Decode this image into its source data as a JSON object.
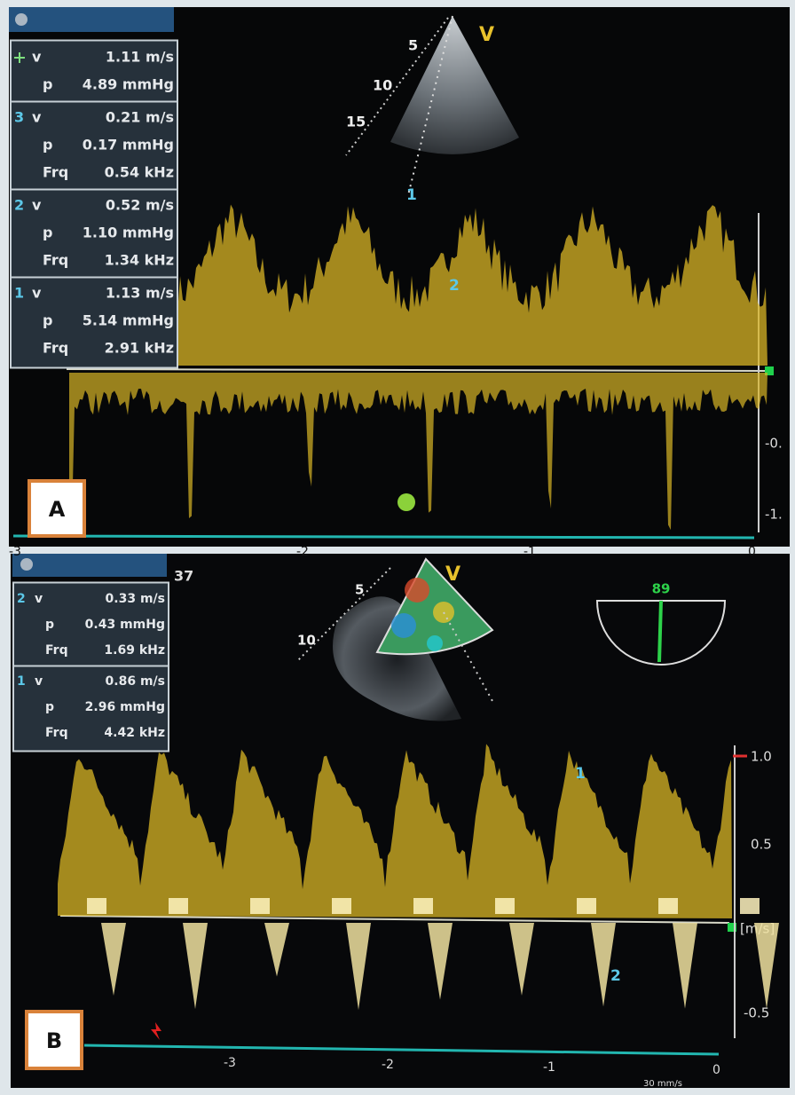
{
  "panel_a": {
    "label": "A",
    "probe": "V",
    "depth_marks": [
      "5",
      "10",
      "15"
    ],
    "cursors": [
      "1",
      "2"
    ],
    "measurements": [
      {
        "rows": [
          [
            "v",
            "1.11 m/s"
          ],
          [
            "p",
            "4.89 mmHg"
          ]
        ]
      },
      {
        "index": "3",
        "rows": [
          [
            "v",
            "0.21 m/s"
          ],
          [
            "p",
            "0.17 mmHg"
          ],
          [
            "Frq",
            "0.54 kHz"
          ]
        ]
      },
      {
        "index": "2",
        "rows": [
          [
            "v",
            "0.52 m/s"
          ],
          [
            "p",
            "1.10 mmHg"
          ],
          [
            "Frq",
            "1.34 kHz"
          ]
        ]
      },
      {
        "index": "1",
        "rows": [
          [
            "v",
            "1.13 m/s"
          ],
          [
            "p",
            "5.14 mmHg"
          ],
          [
            "Frq",
            "2.91 kHz"
          ]
        ]
      }
    ],
    "time_ticks": [
      "-3",
      "-2",
      "-1",
      "0"
    ],
    "scale_labels": [
      "-0.",
      "-1."
    ]
  },
  "panel_b": {
    "label": "B",
    "frame": "37",
    "probe": "V",
    "depth_marks": [
      "5",
      "10"
    ],
    "angle": "89",
    "cursors": [
      "1",
      "2"
    ],
    "measurements": [
      {
        "index": "2",
        "rows": [
          [
            "v",
            "0.33 m/s"
          ],
          [
            "p",
            "0.43 mmHg"
          ],
          [
            "Frq",
            "1.69 kHz"
          ]
        ]
      },
      {
        "index": "1",
        "rows": [
          [
            "v",
            "0.86 m/s"
          ],
          [
            "p",
            "2.96 mmHg"
          ],
          [
            "Frq",
            "4.42 kHz"
          ]
        ]
      }
    ],
    "scale_labels": [
      "1.0",
      "0.5",
      "[m/s]",
      "-0.5"
    ],
    "time_ticks": [
      "-3",
      "-2",
      "-1",
      "0"
    ],
    "sweep": "30 mm/s"
  }
}
